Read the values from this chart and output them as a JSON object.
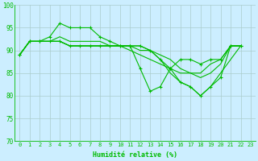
{
  "xlabel": "Humidité relative (%)",
  "bg_color": "#cceeff",
  "grid_color": "#aacccc",
  "line_color": "#00bb00",
  "xlim": [
    -0.5,
    23.5
  ],
  "ylim": [
    70,
    100
  ],
  "xticks": [
    0,
    1,
    2,
    3,
    4,
    5,
    6,
    7,
    8,
    9,
    10,
    11,
    12,
    13,
    14,
    15,
    16,
    17,
    18,
    19,
    20,
    21,
    22,
    23
  ],
  "yticks": [
    70,
    75,
    80,
    85,
    90,
    95,
    100
  ],
  "lines": [
    {
      "y": [
        89,
        92,
        92,
        93,
        96,
        95,
        95,
        95,
        93,
        92,
        91,
        91,
        86,
        81,
        82,
        86,
        88,
        88,
        87,
        88,
        88,
        91,
        91
      ],
      "marker": true
    },
    {
      "y": [
        89,
        92,
        92,
        92,
        93,
        92,
        92,
        92,
        92,
        91,
        91,
        90,
        89,
        88,
        87,
        86,
        85,
        85,
        85,
        87,
        88,
        91,
        91
      ],
      "marker": false
    },
    {
      "y": [
        89,
        92,
        92,
        92,
        92,
        91,
        91,
        91,
        91,
        91,
        91,
        91,
        91,
        90,
        89,
        88,
        86,
        85,
        84,
        85,
        87,
        91,
        91
      ],
      "marker": false
    },
    {
      "y": [
        89,
        92,
        92,
        92,
        92,
        91,
        91,
        91,
        91,
        91,
        91,
        91,
        91,
        90,
        88,
        86,
        83,
        82,
        80,
        82,
        84,
        91,
        91
      ],
      "marker": true
    },
    {
      "y": [
        89,
        92,
        92,
        92,
        92,
        91,
        91,
        91,
        91,
        91,
        91,
        91,
        90,
        90,
        88,
        85,
        83,
        82,
        80,
        82,
        85,
        88,
        91
      ],
      "marker": false
    }
  ],
  "xlabel_fontsize": 6,
  "tick_fontsize": 5,
  "lw": 0.8,
  "markersize": 2.5
}
